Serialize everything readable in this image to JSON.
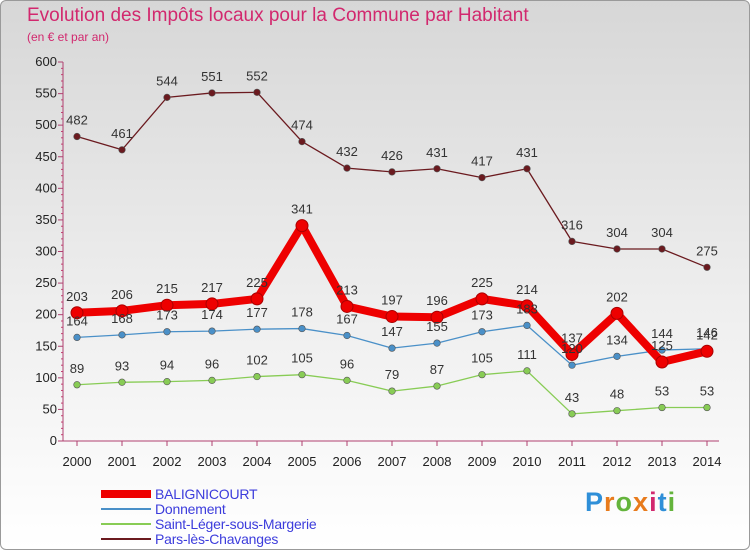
{
  "title": "Evolution des Impôts locaux pour la Commune par Habitant",
  "subtitle": "(en € et par an)",
  "logo_text": "Proxiti",
  "colors": {
    "title": "#d2286e",
    "legend_text": "#3c3cdc"
  },
  "chart_data": {
    "type": "line",
    "x": [
      "2000",
      "2001",
      "2002",
      "2003",
      "2004",
      "2005",
      "2006",
      "2007",
      "2008",
      "2009",
      "2010",
      "2011",
      "2012",
      "2013",
      "2014"
    ],
    "ylim": [
      0,
      600
    ],
    "yticks": [
      0,
      50,
      100,
      150,
      200,
      250,
      300,
      350,
      400,
      450,
      500,
      550,
      600
    ],
    "grid": false,
    "legend_position": "bottom-left",
    "series": [
      {
        "name": "BALIGNICOURT",
        "color": "#ee0000",
        "values": [
          203,
          206,
          215,
          217,
          225,
          341,
          213,
          197,
          196,
          225,
          214,
          137,
          202,
          125,
          142
        ]
      },
      {
        "name": "Donnement",
        "color": "#4a90c8",
        "values": [
          164,
          168,
          173,
          174,
          177,
          178,
          167,
          147,
          155,
          173,
          183,
          120,
          134,
          144,
          146
        ]
      },
      {
        "name": "Saint-Léger-sous-Margerie",
        "color": "#88cc55",
        "values": [
          89,
          93,
          94,
          96,
          102,
          105,
          96,
          79,
          87,
          105,
          111,
          43,
          48,
          53,
          53
        ]
      },
      {
        "name": "Pars-lès-Chavanges",
        "color": "#6b1a1f",
        "values": [
          482,
          461,
          544,
          551,
          552,
          474,
          432,
          426,
          431,
          417,
          431,
          316,
          304,
          304,
          275
        ]
      }
    ]
  }
}
